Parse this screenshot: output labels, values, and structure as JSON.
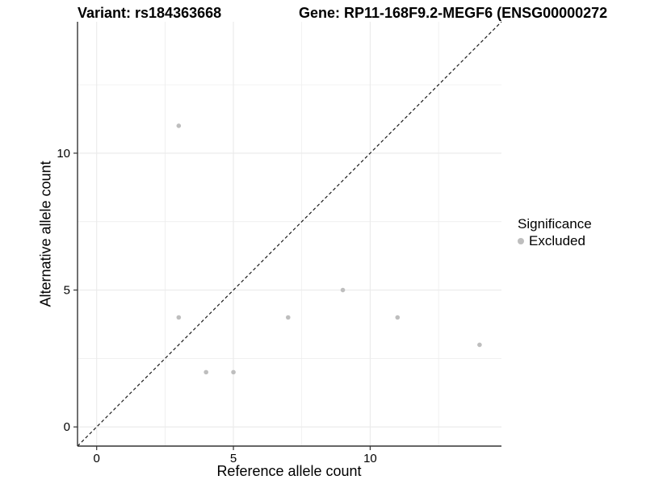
{
  "titles": {
    "variant": "Variant: rs184363668",
    "gene": "Gene: RP11-168F9.2-MEGF6 (ENSG00000272"
  },
  "axes": {
    "x_label": "Reference allele count",
    "y_label": "Alternative allele count"
  },
  "legend": {
    "title": "Significance",
    "items": [
      {
        "label": "Excluded",
        "color": "#bebebe"
      }
    ]
  },
  "chart_data": {
    "type": "scatter",
    "title": "Variant: rs184363668 / Gene: RP11-168F9.2-MEGF6 (ENSG00000272",
    "xlabel": "Reference allele count",
    "ylabel": "Alternative allele count",
    "series": [
      {
        "name": "Excluded",
        "color": "#bebebe",
        "points": [
          {
            "x": 3,
            "y": 11
          },
          {
            "x": 3,
            "y": 4
          },
          {
            "x": 4,
            "y": 2
          },
          {
            "x": 5,
            "y": 2
          },
          {
            "x": 7,
            "y": 4
          },
          {
            "x": 9,
            "y": 5
          },
          {
            "x": 11,
            "y": 4
          },
          {
            "x": 14,
            "y": 3
          }
        ]
      }
    ],
    "axis_range": [
      -0.7,
      14.8
    ],
    "x_major_ticks": [
      {
        "value": 0,
        "label": "0"
      },
      {
        "value": 5,
        "label": "5"
      },
      {
        "value": 10,
        "label": "10"
      }
    ],
    "y_major_ticks": [
      {
        "value": 0,
        "label": "0"
      },
      {
        "value": 5,
        "label": "5"
      },
      {
        "value": 10,
        "label": "10"
      }
    ],
    "minor_ticks": [
      2.5,
      7.5,
      12.5
    ],
    "identity_line": {
      "shown": true,
      "style": "dashed",
      "equation": "y = x"
    },
    "grid": "on",
    "legend_position": "right",
    "colors": {
      "point": "#bebebe",
      "grid_line": "#ebebeb",
      "axis_line": "#333333",
      "identity_line": "#1a1a1a",
      "text": "#000000"
    }
  }
}
